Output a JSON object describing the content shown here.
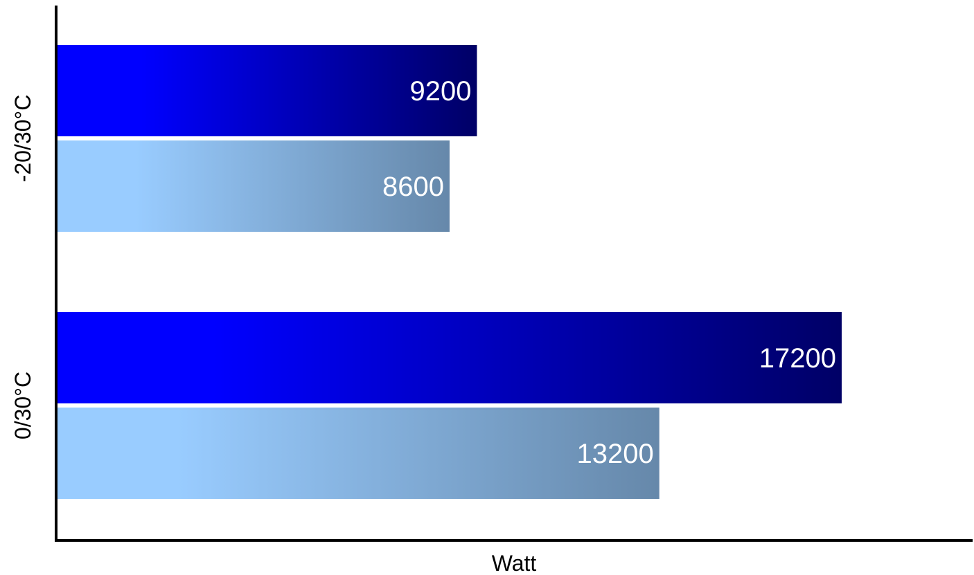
{
  "chart_data": {
    "type": "bar",
    "orientation": "horizontal",
    "categories": [
      "-20/30°C",
      "0/30°C"
    ],
    "series": [
      {
        "values": [
          9200,
          17200
        ],
        "color_start": "#0000ff",
        "color_end": "#000066"
      },
      {
        "values": [
          8600,
          13200
        ],
        "color_start": "#99ccff",
        "color_end": "#6688aa"
      }
    ],
    "xlabel": "Watt",
    "ylabel": "",
    "xlim": [
      0,
      23000
    ],
    "grid": false,
    "data_labels": true
  }
}
